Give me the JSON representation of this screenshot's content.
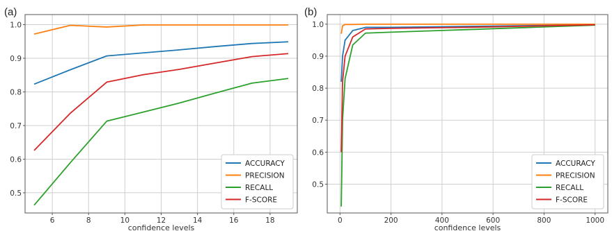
{
  "chart_data": [
    {
      "panel_label": "(a)",
      "type": "line",
      "xlabel": "confidence levels",
      "ylabel": "",
      "xlim": [
        4.5,
        19.5
      ],
      "ylim": [
        0.44,
        1.03
      ],
      "xticks": [
        6,
        8,
        10,
        12,
        14,
        16,
        18
      ],
      "yticks": [
        0.5,
        0.6,
        0.7,
        0.8,
        0.9,
        1.0
      ],
      "ytick_labels": [
        "0.5",
        "0.6",
        "0.7",
        "0.8",
        "0.9",
        "1.0"
      ],
      "grid": true,
      "legend": "bottom-right",
      "series": [
        {
          "name": "ACCURACY",
          "color": "#1f77b4",
          "x": [
            5,
            7,
            9,
            11,
            13,
            15,
            17,
            19
          ],
          "y": [
            0.823,
            0.866,
            0.907,
            0.916,
            0.925,
            0.935,
            0.944,
            0.949
          ]
        },
        {
          "name": "PRECISION",
          "color": "#ff7f0e",
          "x": [
            5,
            7,
            9,
            11,
            13,
            15,
            17,
            19
          ],
          "y": [
            0.972,
            0.998,
            0.993,
            0.999,
            0.999,
            0.999,
            0.999,
            0.999
          ]
        },
        {
          "name": "RECALL",
          "color": "#2ca02c",
          "x": [
            5,
            7,
            9,
            11,
            13,
            15,
            17,
            19
          ],
          "y": [
            0.463,
            0.59,
            0.713,
            0.74,
            0.767,
            0.797,
            0.826,
            0.84
          ]
        },
        {
          "name": "F-SCORE",
          "color": "#d62728",
          "x": [
            5,
            7,
            9,
            11,
            13,
            15,
            17,
            19
          ],
          "y": [
            0.626,
            0.737,
            0.829,
            0.851,
            0.867,
            0.886,
            0.905,
            0.914
          ]
        }
      ]
    },
    {
      "panel_label": "(b)",
      "type": "line",
      "xlabel": "confidence levels",
      "ylabel": "",
      "xlim": [
        -50,
        1050
      ],
      "ylim": [
        0.41,
        1.03
      ],
      "xticks": [
        0,
        200,
        400,
        600,
        800,
        1000
      ],
      "yticks": [
        0.5,
        0.6,
        0.7,
        0.8,
        0.9,
        1.0
      ],
      "ytick_labels": [
        "0.5",
        "0.6",
        "0.7",
        "0.8",
        "0.9",
        "1.0"
      ],
      "grid": true,
      "legend": "bottom-right",
      "series": [
        {
          "name": "ACCURACY",
          "color": "#1f77b4",
          "x": [
            5,
            10,
            20,
            50,
            100,
            200,
            500,
            1000
          ],
          "y": [
            0.82,
            0.9,
            0.95,
            0.98,
            0.99,
            0.99,
            0.993,
            0.998
          ]
        },
        {
          "name": "PRECISION",
          "color": "#ff7f0e",
          "x": [
            5,
            10,
            20,
            50,
            100,
            200,
            500,
            1000
          ],
          "y": [
            0.97,
            0.995,
            0.999,
            0.999,
            1.0,
            1.0,
            1.0,
            1.0
          ]
        },
        {
          "name": "RECALL",
          "color": "#2ca02c",
          "x": [
            5,
            10,
            20,
            50,
            100,
            200,
            500,
            1000
          ],
          "y": [
            0.43,
            0.7,
            0.83,
            0.935,
            0.972,
            0.975,
            0.983,
            0.997
          ]
        },
        {
          "name": "F-SCORE",
          "color": "#d62728",
          "x": [
            5,
            10,
            20,
            50,
            100,
            200,
            500,
            1000
          ],
          "y": [
            0.6,
            0.82,
            0.9,
            0.96,
            0.985,
            0.987,
            0.99,
            0.998
          ]
        }
      ]
    }
  ]
}
